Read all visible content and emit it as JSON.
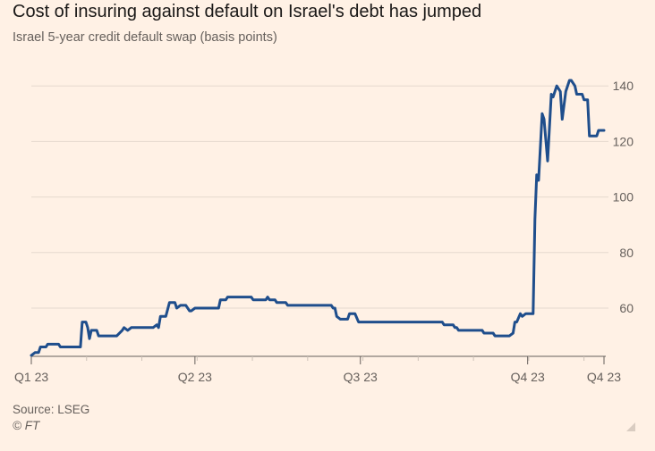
{
  "chart_data": {
    "type": "line",
    "title": "Cost of insuring against default on Israel's debt has jumped",
    "subtitle": "Israel 5-year credit default swap (basis points)",
    "xlabel": "",
    "ylabel": "",
    "ylim": [
      42,
      145
    ],
    "yticks": [
      60,
      80,
      100,
      120,
      140
    ],
    "ytick_labels": [
      "60",
      "80",
      "100",
      "120",
      "140"
    ],
    "grid": true,
    "x_ticks": [
      {
        "label": "Q1 23",
        "day": 0
      },
      {
        "label": "Q2 23",
        "day": 90
      },
      {
        "label": "Q3 23",
        "day": 181
      },
      {
        "label": "Q4 23",
        "day": 273
      },
      {
        "label": "Q4 23",
        "day": 315
      }
    ],
    "xlim": [
      0,
      315
    ],
    "series": [
      {
        "name": "",
        "color": "#1F4E8C",
        "points": [
          [
            0,
            43
          ],
          [
            2,
            44
          ],
          [
            4,
            44
          ],
          [
            5,
            46
          ],
          [
            8,
            46
          ],
          [
            9,
            47
          ],
          [
            15,
            47
          ],
          [
            16,
            46
          ],
          [
            27,
            46
          ],
          [
            28,
            55
          ],
          [
            30,
            55
          ],
          [
            31,
            53
          ],
          [
            32,
            49
          ],
          [
            33,
            52
          ],
          [
            36,
            52
          ],
          [
            37,
            50
          ],
          [
            47,
            50
          ],
          [
            50,
            52
          ],
          [
            51,
            53
          ],
          [
            53,
            52
          ],
          [
            55,
            53
          ],
          [
            67,
            53
          ],
          [
            69,
            54
          ],
          [
            70,
            53
          ],
          [
            71,
            57
          ],
          [
            74,
            57
          ],
          [
            76,
            62
          ],
          [
            79,
            62
          ],
          [
            80,
            60
          ],
          [
            82,
            61
          ],
          [
            85,
            61
          ],
          [
            87,
            59
          ],
          [
            88,
            59
          ],
          [
            90,
            60
          ],
          [
            103,
            60
          ],
          [
            104,
            63
          ],
          [
            107,
            63
          ],
          [
            108,
            64
          ],
          [
            121,
            64
          ],
          [
            122,
            63
          ],
          [
            129,
            63
          ],
          [
            130,
            64
          ],
          [
            131,
            63
          ],
          [
            134,
            63
          ],
          [
            135,
            62
          ],
          [
            140,
            62
          ],
          [
            141,
            61
          ],
          [
            165,
            61
          ],
          [
            166,
            60
          ],
          [
            167,
            60
          ],
          [
            168,
            57
          ],
          [
            170,
            56
          ],
          [
            174,
            56
          ],
          [
            175,
            58
          ],
          [
            178,
            58
          ],
          [
            180,
            55
          ],
          [
            226,
            55
          ],
          [
            227,
            54
          ],
          [
            232,
            54
          ],
          [
            233,
            53
          ],
          [
            234,
            53
          ],
          [
            235,
            52
          ],
          [
            248,
            52
          ],
          [
            249,
            51
          ],
          [
            254,
            51
          ],
          [
            255,
            50
          ],
          [
            263,
            50
          ],
          [
            265,
            51
          ],
          [
            266,
            55
          ],
          [
            267,
            55
          ],
          [
            269,
            58
          ],
          [
            270,
            57
          ],
          [
            272,
            58
          ],
          [
            276,
            58
          ],
          [
            277,
            92
          ],
          [
            278,
            108
          ],
          [
            279,
            106
          ],
          [
            280,
            118
          ],
          [
            281,
            130
          ],
          [
            282,
            128
          ],
          [
            284,
            113
          ],
          [
            286,
            137
          ],
          [
            287,
            136
          ],
          [
            289,
            140
          ],
          [
            291,
            138
          ],
          [
            292,
            128
          ],
          [
            294,
            138
          ],
          [
            296,
            142
          ],
          [
            297,
            142
          ],
          [
            299,
            140
          ],
          [
            300,
            137
          ],
          [
            303,
            137
          ],
          [
            304,
            135
          ],
          [
            306,
            135
          ],
          [
            307,
            122
          ],
          [
            311,
            122
          ],
          [
            312,
            124
          ],
          [
            315,
            124
          ]
        ]
      }
    ]
  },
  "footer": {
    "source": "Source: LSEG",
    "credit": "© FT"
  }
}
